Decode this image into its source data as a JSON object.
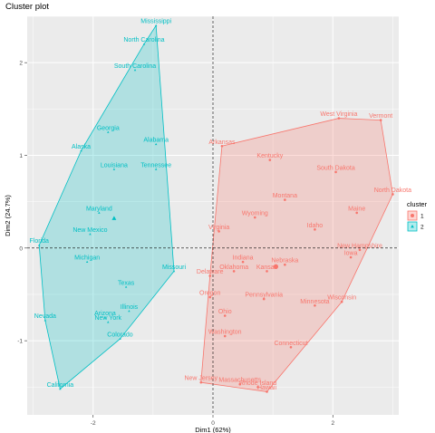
{
  "chart_data": {
    "type": "scatter",
    "title": "Cluster plot",
    "xlabel": "Dim1 (62%)",
    "ylabel": "Dim2 (24.7%)",
    "xlim": [
      -3.1,
      3.1
    ],
    "ylim": [
      -1.8,
      2.5
    ],
    "x_ticks": [
      -2,
      0,
      2
    ],
    "y_ticks": [
      -1,
      0,
      1,
      2
    ],
    "grid": true,
    "legend_title": "cluster",
    "legend_position": "right",
    "series": [
      {
        "name": "1",
        "color": "#F8766D",
        "marker": "circle",
        "centroid": [
          1.05,
          -0.2
        ],
        "points": [
          {
            "label": "West Virginia",
            "x": 2.1,
            "y": 1.4
          },
          {
            "label": "Vermont",
            "x": 2.8,
            "y": 1.38
          },
          {
            "label": "Arkansas",
            "x": 0.15,
            "y": 1.1
          },
          {
            "label": "Kentucky",
            "x": 0.95,
            "y": 0.95
          },
          {
            "label": "South Dakota",
            "x": 2.05,
            "y": 0.82
          },
          {
            "label": "North Dakota",
            "x": 3.0,
            "y": 0.58
          },
          {
            "label": "Montana",
            "x": 1.2,
            "y": 0.52
          },
          {
            "label": "Maine",
            "x": 2.4,
            "y": 0.38
          },
          {
            "label": "Wyoming",
            "x": 0.7,
            "y": 0.33
          },
          {
            "label": "Idaho",
            "x": 1.7,
            "y": 0.2
          },
          {
            "label": "Virginia",
            "x": 0.1,
            "y": 0.18
          },
          {
            "label": "New Hampshire",
            "x": 2.45,
            "y": -0.02
          },
          {
            "label": "Iowa",
            "x": 2.3,
            "y": -0.1
          },
          {
            "label": "Indiana",
            "x": 0.5,
            "y": -0.15
          },
          {
            "label": "Nebraska",
            "x": 1.2,
            "y": -0.18
          },
          {
            "label": "Kansas",
            "x": 0.9,
            "y": -0.25
          },
          {
            "label": "Oklahoma",
            "x": 0.35,
            "y": -0.25
          },
          {
            "label": "Delaware",
            "x": -0.05,
            "y": -0.3
          },
          {
            "label": "Oregon",
            "x": -0.05,
            "y": -0.53
          },
          {
            "label": "Pennsylvania",
            "x": 0.85,
            "y": -0.55
          },
          {
            "label": "Wisconsin",
            "x": 2.15,
            "y": -0.58
          },
          {
            "label": "Minnesota",
            "x": 1.7,
            "y": -0.62
          },
          {
            "label": "Ohio",
            "x": 0.2,
            "y": -0.73
          },
          {
            "label": "Washington",
            "x": 0.2,
            "y": -0.95
          },
          {
            "label": "Connecticut",
            "x": 1.3,
            "y": -1.07
          },
          {
            "label": "New Jersey",
            "x": -0.2,
            "y": -1.45
          },
          {
            "label": "Massachusetts",
            "x": 0.45,
            "y": -1.47
          },
          {
            "label": "Rhode Island",
            "x": 0.75,
            "y": -1.5
          },
          {
            "label": "Hawaii",
            "x": 0.9,
            "y": -1.55
          }
        ]
      },
      {
        "name": "2",
        "color": "#00BFC4",
        "marker": "triangle",
        "centroid": [
          -1.65,
          0.32
        ],
        "points": [
          {
            "label": "Mississippi",
            "x": -0.95,
            "y": 2.4
          },
          {
            "label": "North Carolina",
            "x": -1.15,
            "y": 2.2
          },
          {
            "label": "South Carolina",
            "x": -1.3,
            "y": 1.92
          },
          {
            "label": "Georgia",
            "x": -1.75,
            "y": 1.25
          },
          {
            "label": "Alabama",
            "x": -0.95,
            "y": 1.12
          },
          {
            "label": "Alaska",
            "x": -2.2,
            "y": 1.05
          },
          {
            "label": "Louisiana",
            "x": -1.65,
            "y": 0.85
          },
          {
            "label": "Tennessee",
            "x": -0.95,
            "y": 0.85
          },
          {
            "label": "Maryland",
            "x": -1.9,
            "y": 0.38
          },
          {
            "label": "New Mexico",
            "x": -2.05,
            "y": 0.15
          },
          {
            "label": "Florida",
            "x": -2.9,
            "y": 0.03
          },
          {
            "label": "Michigan",
            "x": -2.1,
            "y": -0.15
          },
          {
            "label": "Missouri",
            "x": -0.65,
            "y": -0.25
          },
          {
            "label": "Texas",
            "x": -1.45,
            "y": -0.42
          },
          {
            "label": "Illinois",
            "x": -1.4,
            "y": -0.68
          },
          {
            "label": "Arizona",
            "x": -1.8,
            "y": -0.75
          },
          {
            "label": "New York",
            "x": -1.75,
            "y": -0.8
          },
          {
            "label": "Nevada",
            "x": -2.8,
            "y": -0.78
          },
          {
            "label": "Colorado",
            "x": -1.55,
            "y": -0.98
          },
          {
            "label": "California",
            "x": -2.55,
            "y": -1.52
          }
        ]
      }
    ]
  }
}
